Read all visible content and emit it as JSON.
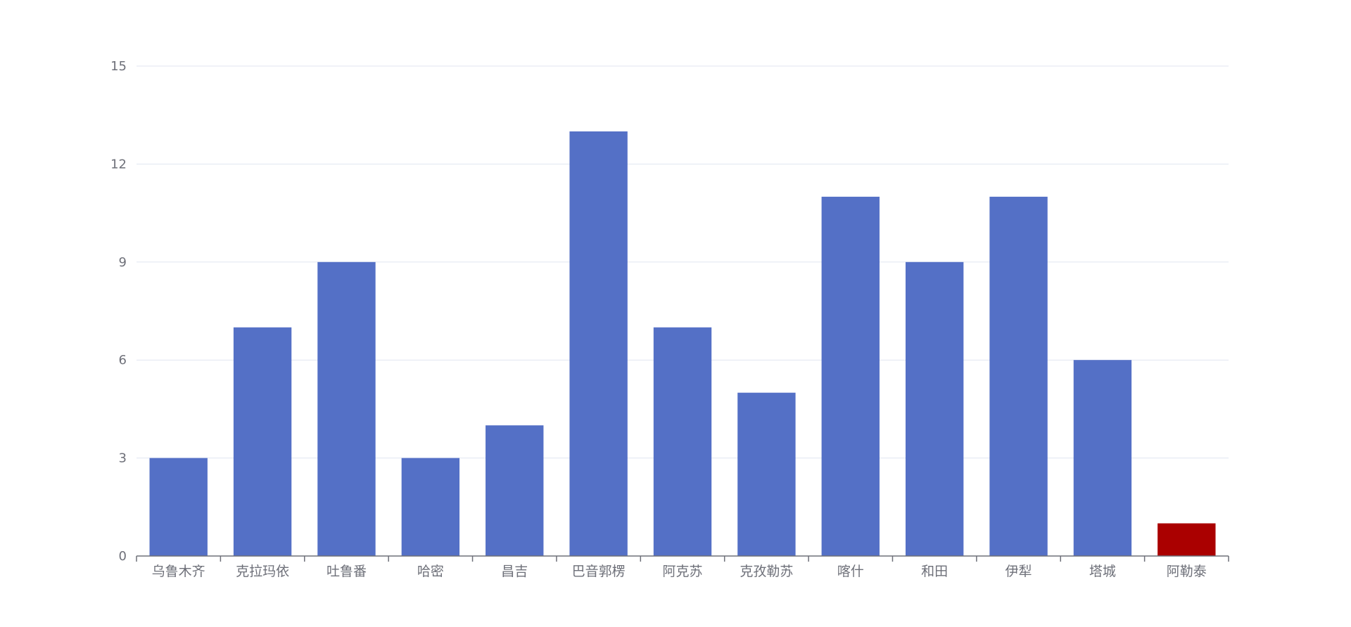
{
  "chart_data": {
    "type": "bar",
    "title": "",
    "xlabel": "",
    "ylabel": "",
    "ylim": [
      0,
      15
    ],
    "yticks": [
      0,
      3,
      6,
      9,
      12,
      15
    ],
    "grid": true,
    "categories": [
      "乌鲁木齐",
      "克拉玛依",
      "吐鲁番",
      "哈密",
      "昌吉",
      "巴音郭楞",
      "阿克苏",
      "克孜勒苏",
      "喀什",
      "和田",
      "伊犁",
      "塔城",
      "阿勒泰"
    ],
    "values": [
      3,
      7,
      9,
      3,
      4,
      13,
      7,
      5,
      11,
      9,
      11,
      6,
      1
    ],
    "colors": {
      "default_bar": "#5470c6",
      "highlight_bar": "#aa0000",
      "grid": "#e0e6f1",
      "axis": "#6e7079",
      "label": "#6e7079"
    },
    "highlight_categories": [
      "阿勒泰"
    ]
  }
}
